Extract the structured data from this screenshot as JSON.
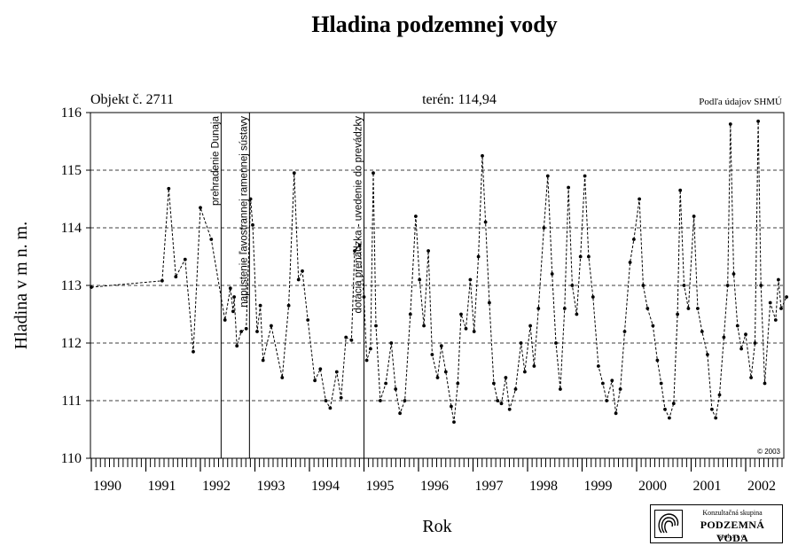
{
  "chart_data": {
    "type": "line",
    "title": "Hladina podzemnej vody",
    "header": {
      "object_label": "Objekt č. 2711",
      "terrain_label": "terén: 114,94",
      "source_label": "Podľa údajov SHMÚ"
    },
    "xlabel": "Rok",
    "ylabel": "Hladina v m n. m.",
    "xlim": [
      1990.0,
      2002.75
    ],
    "ylim": [
      110,
      116
    ],
    "yticks": [
      "110",
      "111",
      "112",
      "113",
      "114",
      "115",
      "116"
    ],
    "xticks": [
      "1990",
      "1991",
      "1992",
      "1993",
      "1994",
      "1995",
      "1996",
      "1997",
      "1998",
      "1999",
      "2000",
      "2001",
      "2002"
    ],
    "grid": "horizontal dashed",
    "copyright": "© 2003",
    "events": [
      {
        "x": 1992.38,
        "label": "prehradenie Dunaja"
      },
      {
        "x": 1992.9,
        "label": "napustenie ľavostrannej ramennej sústavy"
      },
      {
        "x": 1995.0,
        "label": "dotácia prenádzka - uvedenie do prevádzky"
      }
    ],
    "series": [
      {
        "values": [
          [
            1990.0,
            112.97
          ],
          [
            1991.3,
            113.08
          ],
          [
            1991.42,
            114.68
          ],
          [
            1991.55,
            113.15
          ],
          [
            1991.72,
            113.45
          ],
          [
            1991.87,
            111.85
          ],
          [
            1992.0,
            114.35
          ],
          [
            1992.2,
            113.8
          ],
          [
            1992.45,
            112.4
          ],
          [
            1992.55,
            112.95
          ],
          [
            1992.6,
            112.55
          ],
          [
            1992.62,
            112.8
          ],
          [
            1992.67,
            111.95
          ],
          [
            1992.75,
            112.2
          ],
          [
            1992.84,
            112.25
          ],
          [
            1992.92,
            114.5
          ],
          [
            1992.96,
            114.05
          ],
          [
            1993.04,
            112.2
          ],
          [
            1993.1,
            112.65
          ],
          [
            1993.15,
            111.7
          ],
          [
            1993.3,
            112.3
          ],
          [
            1993.5,
            111.4
          ],
          [
            1993.62,
            112.65
          ],
          [
            1993.72,
            114.95
          ],
          [
            1993.8,
            113.1
          ],
          [
            1993.87,
            113.25
          ],
          [
            1993.97,
            112.4
          ],
          [
            1994.1,
            111.35
          ],
          [
            1994.2,
            111.55
          ],
          [
            1994.3,
            111.0
          ],
          [
            1994.38,
            110.87
          ],
          [
            1994.5,
            111.5
          ],
          [
            1994.58,
            111.05
          ],
          [
            1994.67,
            112.1
          ],
          [
            1994.77,
            112.05
          ],
          [
            1994.83,
            113.6
          ],
          [
            1994.92,
            113.7
          ],
          [
            1995.0,
            112.8
          ],
          [
            1995.05,
            111.7
          ],
          [
            1995.12,
            111.9
          ],
          [
            1995.17,
            114.95
          ],
          [
            1995.22,
            112.3
          ],
          [
            1995.3,
            111.0
          ],
          [
            1995.4,
            111.3
          ],
          [
            1995.5,
            112.0
          ],
          [
            1995.58,
            111.2
          ],
          [
            1995.66,
            110.78
          ],
          [
            1995.75,
            111.0
          ],
          [
            1995.85,
            112.5
          ],
          [
            1995.95,
            114.2
          ],
          [
            1996.02,
            113.1
          ],
          [
            1996.1,
            112.3
          ],
          [
            1996.18,
            113.6
          ],
          [
            1996.25,
            111.8
          ],
          [
            1996.35,
            111.4
          ],
          [
            1996.42,
            111.95
          ],
          [
            1996.5,
            111.5
          ],
          [
            1996.6,
            110.9
          ],
          [
            1996.65,
            110.63
          ],
          [
            1996.72,
            111.3
          ],
          [
            1996.78,
            112.5
          ],
          [
            1996.87,
            112.25
          ],
          [
            1996.95,
            113.1
          ],
          [
            1997.02,
            112.2
          ],
          [
            1997.1,
            113.5
          ],
          [
            1997.17,
            115.25
          ],
          [
            1997.23,
            114.1
          ],
          [
            1997.3,
            112.7
          ],
          [
            1997.38,
            111.3
          ],
          [
            1997.45,
            111.0
          ],
          [
            1997.52,
            110.95
          ],
          [
            1997.6,
            111.4
          ],
          [
            1997.67,
            110.85
          ],
          [
            1997.78,
            111.2
          ],
          [
            1997.88,
            112.0
          ],
          [
            1997.95,
            111.5
          ],
          [
            1998.05,
            112.3
          ],
          [
            1998.12,
            111.6
          ],
          [
            1998.2,
            112.6
          ],
          [
            1998.3,
            114.0
          ],
          [
            1998.37,
            114.9
          ],
          [
            1998.45,
            113.2
          ],
          [
            1998.52,
            112.0
          ],
          [
            1998.6,
            111.2
          ],
          [
            1998.68,
            112.6
          ],
          [
            1998.75,
            114.7
          ],
          [
            1998.82,
            113.0
          ],
          [
            1998.9,
            112.5
          ],
          [
            1998.97,
            113.5
          ],
          [
            1999.05,
            114.9
          ],
          [
            1999.12,
            113.5
          ],
          [
            1999.2,
            112.8
          ],
          [
            1999.3,
            111.6
          ],
          [
            1999.38,
            111.3
          ],
          [
            1999.45,
            111.0
          ],
          [
            1999.55,
            111.35
          ],
          [
            1999.62,
            110.78
          ],
          [
            1999.7,
            111.2
          ],
          [
            1999.78,
            112.2
          ],
          [
            1999.88,
            113.4
          ],
          [
            1999.95,
            113.8
          ],
          [
            2000.05,
            114.5
          ],
          [
            2000.12,
            113.0
          ],
          [
            2000.2,
            112.6
          ],
          [
            2000.3,
            112.3
          ],
          [
            2000.38,
            111.7
          ],
          [
            2000.45,
            111.3
          ],
          [
            2000.52,
            110.85
          ],
          [
            2000.6,
            110.7
          ],
          [
            2000.68,
            110.95
          ],
          [
            2000.75,
            112.5
          ],
          [
            2000.8,
            114.65
          ],
          [
            2000.87,
            113.0
          ],
          [
            2000.95,
            112.6
          ],
          [
            2001.05,
            114.2
          ],
          [
            2001.12,
            112.6
          ],
          [
            2001.2,
            112.2
          ],
          [
            2001.3,
            111.8
          ],
          [
            2001.38,
            110.85
          ],
          [
            2001.45,
            110.7
          ],
          [
            2001.52,
            111.1
          ],
          [
            2001.6,
            112.1
          ],
          [
            2001.67,
            113.0
          ],
          [
            2001.72,
            115.8
          ],
          [
            2001.78,
            113.2
          ],
          [
            2001.85,
            112.3
          ],
          [
            2001.92,
            111.9
          ],
          [
            2002.0,
            112.15
          ],
          [
            2002.1,
            111.4
          ],
          [
            2002.17,
            112.0
          ],
          [
            2002.23,
            115.85
          ],
          [
            2002.28,
            113.0
          ],
          [
            2002.35,
            111.3
          ],
          [
            2002.45,
            112.7
          ],
          [
            2002.55,
            112.4
          ],
          [
            2002.6,
            113.1
          ],
          [
            2002.65,
            112.6
          ],
          [
            2002.75,
            112.8
          ]
        ]
      }
    ]
  },
  "logo": {
    "line1": "Konzultačná skupina",
    "line2": "PODZEMNÁ VODA",
    "line3": "spol. s r. o."
  }
}
